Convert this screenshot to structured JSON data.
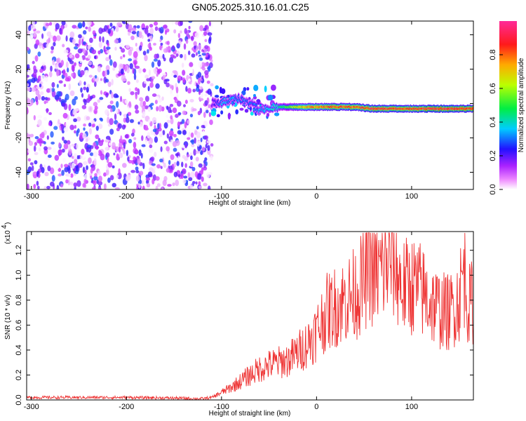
{
  "title": "GN05.2025.310.16.01.C25",
  "chart_data": [
    {
      "type": "heatmap",
      "xlabel": "Height of straight line (km)",
      "ylabel": "Frequency (Hz)",
      "xlim": [
        -305,
        165
      ],
      "ylim": [
        -50,
        48
      ],
      "xticks": [
        -300,
        -200,
        -100,
        0,
        100
      ],
      "yticks": [
        -40,
        -20,
        0,
        20,
        40
      ],
      "noise_region_x": [
        -305,
        -110
      ],
      "signal_track": [
        {
          "x": -110,
          "freq": 0,
          "amp": 0.2
        },
        {
          "x": -100,
          "freq": 1,
          "amp": 0.35
        },
        {
          "x": -90,
          "freq": 2,
          "amp": 0.35
        },
        {
          "x": -80,
          "freq": 3,
          "amp": 0.32
        },
        {
          "x": -70,
          "freq": -1,
          "amp": 0.3
        },
        {
          "x": -60,
          "freq": -3,
          "amp": 0.35
        },
        {
          "x": -50,
          "freq": -2,
          "amp": 0.4
        },
        {
          "x": -40,
          "freq": -2,
          "amp": 0.45
        },
        {
          "x": -30,
          "freq": -2,
          "amp": 0.55
        },
        {
          "x": -20,
          "freq": -2,
          "amp": 0.7
        },
        {
          "x": -10,
          "freq": -2,
          "amp": 0.8
        },
        {
          "x": 0,
          "freq": -2,
          "amp": 0.85
        },
        {
          "x": 20,
          "freq": -2,
          "amp": 0.9
        },
        {
          "x": 40,
          "freq": -2,
          "amp": 0.88
        },
        {
          "x": 60,
          "freq": -3,
          "amp": 0.95
        },
        {
          "x": 80,
          "freq": -3,
          "amp": 0.92
        },
        {
          "x": 100,
          "freq": -3,
          "amp": 0.9
        },
        {
          "x": 120,
          "freq": -3,
          "amp": 0.97
        },
        {
          "x": 140,
          "freq": -3,
          "amp": 0.97
        },
        {
          "x": 165,
          "freq": -3,
          "amp": 0.95
        }
      ],
      "colorbar": {
        "label": "Normalized spectral amplitude",
        "range": [
          0,
          1
        ],
        "ticks": [
          "0.0",
          "0.2",
          "0.4",
          "0.6",
          "0.8"
        ],
        "tick_values": [
          0,
          0.2,
          0.4,
          0.6,
          0.8
        ],
        "colors": [
          "#ffffff",
          "#cc33ff",
          "#3311ff",
          "#00e6ff",
          "#00ee33",
          "#ccff00",
          "#ffaa00",
          "#ff1a1a",
          "#ff2a88"
        ]
      }
    },
    {
      "type": "line",
      "xlabel": "Height of straight line (km)",
      "ylabel": "SNR (10 * v/v)",
      "scale_note": "(x10",
      "scale_exp": "4",
      "xlim": [
        -305,
        165
      ],
      "ylim": [
        0,
        1.35
      ],
      "xticks": [
        -300,
        -200,
        -100,
        0,
        100
      ],
      "yticks": [
        0.0,
        0.2,
        0.4,
        0.6,
        0.8,
        1.0,
        1.2
      ],
      "ytick_labels": [
        "0.0",
        "0.2",
        "0.4",
        "0.6",
        "0.8",
        "1.0",
        "1.2"
      ],
      "color": "#ee3333",
      "series": [
        {
          "name": "SNR",
          "x": [
            -305,
            -250,
            -200,
            -150,
            -120,
            -110,
            -100,
            -90,
            -80,
            -70,
            -60,
            -50,
            -40,
            -30,
            -20,
            -10,
            0,
            10,
            20,
            30,
            40,
            50,
            55,
            60,
            70,
            80,
            90,
            100,
            110,
            120,
            130,
            140,
            150,
            155,
            160,
            165
          ],
          "values": [
            0.02,
            0.02,
            0.02,
            0.015,
            0.01,
            0.02,
            0.06,
            0.1,
            0.15,
            0.2,
            0.25,
            0.28,
            0.3,
            0.32,
            0.38,
            0.45,
            0.55,
            0.7,
            0.75,
            0.8,
            0.85,
            0.95,
            1.1,
            1.0,
            1.05,
            1.15,
            0.9,
            0.92,
            0.88,
            0.78,
            0.72,
            0.7,
            0.82,
            1.05,
            0.75,
            0.8
          ]
        }
      ]
    }
  ]
}
